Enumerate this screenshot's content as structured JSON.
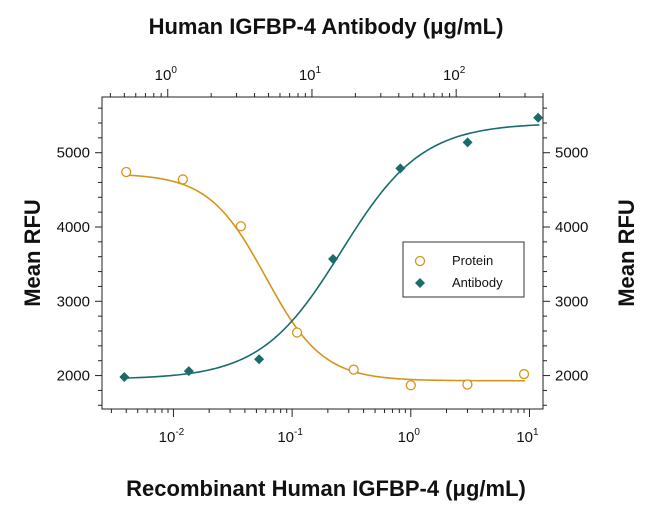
{
  "chart_data": {
    "type": "scatter",
    "title": "Human IGFBP-4 Antibody (μg/mL)",
    "xlabel": "Recombinant Human IGFBP-4 (μg/mL)",
    "ylabel_left": "Mean RFU",
    "ylabel_right": "Mean RFU",
    "x_scale": "log",
    "xlim": [
      0.0025,
      13
    ],
    "ylim": [
      1550,
      5750
    ],
    "x_ticks": [
      {
        "base": "10",
        "exp": "-2",
        "value": 0.01
      },
      {
        "base": "10",
        "exp": "-1",
        "value": 0.1
      },
      {
        "base": "10",
        "exp": "0",
        "value": 1
      },
      {
        "base": "10",
        "exp": "1",
        "value": 10
      }
    ],
    "x2_scale": "log",
    "x2lim": [
      0.35,
      400
    ],
    "x2_ticks": [
      {
        "base": "10",
        "exp": "0",
        "value": 1
      },
      {
        "base": "10",
        "exp": "1",
        "value": 10
      },
      {
        "base": "10",
        "exp": "2",
        "value": 100
      }
    ],
    "y_ticks": [
      {
        "label": "2000",
        "value": 2000
      },
      {
        "label": "3000",
        "value": 3000
      },
      {
        "label": "4000",
        "value": 4000
      },
      {
        "label": "5000",
        "value": 5000
      }
    ],
    "legend": {
      "position": "center-right",
      "entries": [
        "Protein",
        "Antibody"
      ]
    },
    "series": [
      {
        "name": "Protein",
        "axis": "bottom",
        "marker": "open-circle",
        "color": "#d4951a",
        "x": [
          0.004,
          0.012,
          0.037,
          0.11,
          0.33,
          1.0,
          3.0,
          9.0
        ],
        "y": [
          4740,
          4640,
          4010,
          2580,
          2080,
          1870,
          1880,
          2020
        ],
        "fit": {
          "top": 4720,
          "bottom": 1930,
          "ec50": 0.06,
          "hill": -1.8
        }
      },
      {
        "name": "Antibody",
        "axis": "top",
        "marker": "filled-diamond",
        "color": "#1b6b6b",
        "x": [
          0.5,
          1.4,
          4.3,
          14,
          41,
          120,
          370
        ],
        "y": [
          1980,
          2060,
          2220,
          3570,
          4790,
          5140,
          5470
        ],
        "fit": {
          "top": 5400,
          "bottom": 1950,
          "ec50": 16,
          "hill": 1.55
        }
      }
    ]
  }
}
